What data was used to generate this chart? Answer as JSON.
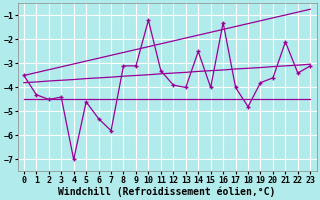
{
  "xlabel": "Windchill (Refroidissement éolien,°C)",
  "background_color": "#b2ebeb",
  "grid_color": "#ffffff",
  "line_color": "#990099",
  "x": [
    0,
    1,
    2,
    3,
    4,
    5,
    6,
    7,
    8,
    9,
    10,
    11,
    12,
    13,
    14,
    15,
    16,
    17,
    18,
    19,
    20,
    21,
    22,
    23
  ],
  "line1": [
    -3.5,
    -4.3,
    -4.5,
    -4.4,
    -7.0,
    -4.6,
    -5.3,
    -5.8,
    -3.1,
    -3.1,
    -1.2,
    -3.3,
    -3.9,
    -4.0,
    -2.5,
    -4.0,
    -1.3,
    -4.0,
    -4.8,
    -3.8,
    -3.6,
    -2.1,
    -3.4,
    -3.1
  ],
  "line2_flat": [
    -4.5,
    -4.5,
    -4.5,
    -4.5,
    -4.5,
    -4.5,
    -4.5,
    -4.5,
    -4.5,
    -4.5,
    -4.5,
    -4.5,
    -4.5,
    -4.5,
    -4.5,
    -4.5,
    -4.5,
    -4.5,
    -4.5,
    -4.5,
    -4.5,
    -4.5,
    -4.5,
    -4.5
  ],
  "line3": [
    -3.8,
    -3.77,
    -3.73,
    -3.7,
    -3.67,
    -3.63,
    -3.6,
    -3.57,
    -3.53,
    -3.5,
    -3.47,
    -3.43,
    -3.4,
    -3.37,
    -3.33,
    -3.3,
    -3.27,
    -3.23,
    -3.2,
    -3.17,
    -3.13,
    -3.1,
    -3.07,
    -3.03
  ],
  "line4": [
    -3.5,
    -3.38,
    -3.26,
    -3.14,
    -3.02,
    -2.9,
    -2.78,
    -2.66,
    -2.54,
    -2.42,
    -2.3,
    -2.18,
    -2.06,
    -1.94,
    -1.82,
    -1.7,
    -1.58,
    -1.46,
    -1.34,
    -1.22,
    -1.1,
    -0.98,
    -0.86,
    -0.74
  ],
  "ylim": [
    -7.5,
    -0.5
  ],
  "xlim": [
    -0.5,
    23.5
  ],
  "yticks": [
    -7,
    -6,
    -5,
    -4,
    -3,
    -2,
    -1
  ],
  "xticks": [
    0,
    1,
    2,
    3,
    4,
    5,
    6,
    7,
    8,
    9,
    10,
    11,
    12,
    13,
    14,
    15,
    16,
    17,
    18,
    19,
    20,
    21,
    22,
    23
  ],
  "tick_fontsize": 6.0,
  "xlabel_fontsize": 7.0
}
